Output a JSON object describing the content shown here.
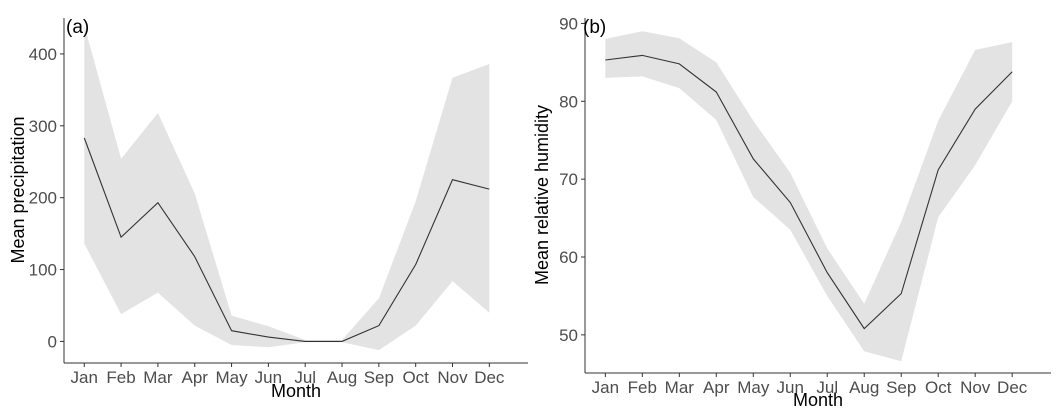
{
  "colors": {
    "ribbon": "#e3e3e3",
    "line": "#333333",
    "axis": "#333333",
    "tick_text": "#4d4d4d"
  },
  "chart_data": [
    {
      "type": "line",
      "panel_label": "(a)",
      "title": "",
      "xlabel": "Month",
      "ylabel": "Mean precipitation",
      "categories": [
        "Jan",
        "Feb",
        "Mar",
        "Apr",
        "May",
        "Jun",
        "Jul",
        "Aug",
        "Sep",
        "Oct",
        "Nov",
        "Dec"
      ],
      "yticks": [
        0,
        100,
        200,
        300,
        400
      ],
      "ylim": [
        -30,
        450
      ],
      "grid": false,
      "series": [
        {
          "values": [
            283,
            145,
            193,
            118,
            15,
            6,
            0,
            0,
            22,
            107,
            225,
            212
          ]
        }
      ],
      "band": {
        "lower": [
          136,
          38,
          68,
          22,
          -5,
          -8,
          -1,
          -1,
          -12,
          22,
          84,
          40
        ],
        "upper": [
          440,
          254,
          318,
          206,
          36,
          21,
          2,
          2,
          60,
          195,
          367,
          386
        ]
      }
    },
    {
      "type": "line",
      "panel_label": "(b)",
      "title": "",
      "xlabel": "Month",
      "ylabel": "Mean relative humidity",
      "categories": [
        "Jan",
        "Feb",
        "Mar",
        "Apr",
        "May",
        "Jun",
        "Jul",
        "Aug",
        "Sep",
        "Oct",
        "Nov",
        "Dec"
      ],
      "yticks": [
        50,
        60,
        70,
        80,
        90
      ],
      "ylim": [
        45.1,
        90.7
      ],
      "grid": false,
      "series": [
        {
          "values": [
            85.3,
            85.9,
            84.8,
            81.2,
            72.6,
            67.0,
            58.0,
            50.8,
            55.3,
            71.2,
            79.0,
            83.8
          ]
        }
      ],
      "band": {
        "lower": [
          83.0,
          83.2,
          81.7,
          77.6,
          67.7,
          63.5,
          55.0,
          47.9,
          46.6,
          65.1,
          71.8,
          80.0
        ],
        "upper": [
          88.0,
          89.0,
          88.1,
          85.0,
          77.5,
          70.8,
          61.1,
          54.0,
          64.5,
          77.5,
          86.6,
          87.6
        ]
      }
    }
  ]
}
